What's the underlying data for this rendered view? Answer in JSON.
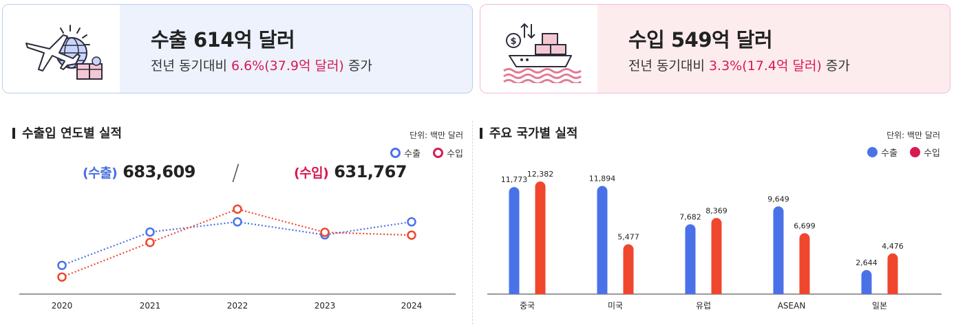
{
  "summary": {
    "export": {
      "title": "수출 614억 달러",
      "sub_prefix": "전년 동기대비",
      "sub_highlight": "6.6%(37.9억 달러)",
      "sub_suffix": "증가"
    },
    "import": {
      "title": "수입 549억 달러",
      "sub_prefix": "전년 동기대비",
      "sub_highlight": "3.3%(17.4억 달러)",
      "sub_suffix": "증가"
    }
  },
  "yearly": {
    "title": "수출입 연도별 실적",
    "unit": "단위: 백만 달러",
    "legend_export": "수출",
    "legend_import": "수입",
    "export_total_label": "(수출)",
    "export_total_value": "683,609",
    "import_total_label": "(수입)",
    "import_total_value": "631,767"
  },
  "country": {
    "title": "주요 국가별 실적",
    "unit": "단위: 백만 달러",
    "legend_export": "수출",
    "legend_import": "수입"
  },
  "colors": {
    "export": "#4a72e8",
    "import": "#f0462e",
    "import_legend": "#d8194f"
  },
  "chart_data": [
    {
      "type": "line",
      "title": "수출입 연도별 실적",
      "categories": [
        "2020",
        "2021",
        "2022",
        "2023",
        "2024"
      ],
      "series": [
        {
          "name": "수출",
          "values": [
            51300,
            64400,
            68400,
            63300,
            68400
          ]
        },
        {
          "name": "수입",
          "values": [
            46700,
            60300,
            73400,
            64300,
            63200
          ]
        }
      ],
      "ylim": [
        40000,
        80000
      ],
      "grid": false,
      "legend": "top-right"
    },
    {
      "type": "bar",
      "title": "주요 국가별 실적",
      "categories": [
        "중국",
        "미국",
        "유럽",
        "ASEAN",
        "일본"
      ],
      "series": [
        {
          "name": "수출",
          "values": [
            11773,
            11894,
            7682,
            9649,
            2644
          ]
        },
        {
          "name": "수입",
          "values": [
            12382,
            5477,
            8369,
            6699,
            4476
          ]
        }
      ],
      "value_labels": {
        "수출": [
          "11,773",
          "11,894",
          "7,682",
          "9,649",
          "2,644"
        ],
        "수입": [
          "12,382",
          "5,477",
          "8,369",
          "6,699",
          "4,476"
        ]
      },
      "ylim": [
        0,
        13000
      ],
      "grid": false,
      "legend": "top-right"
    }
  ]
}
